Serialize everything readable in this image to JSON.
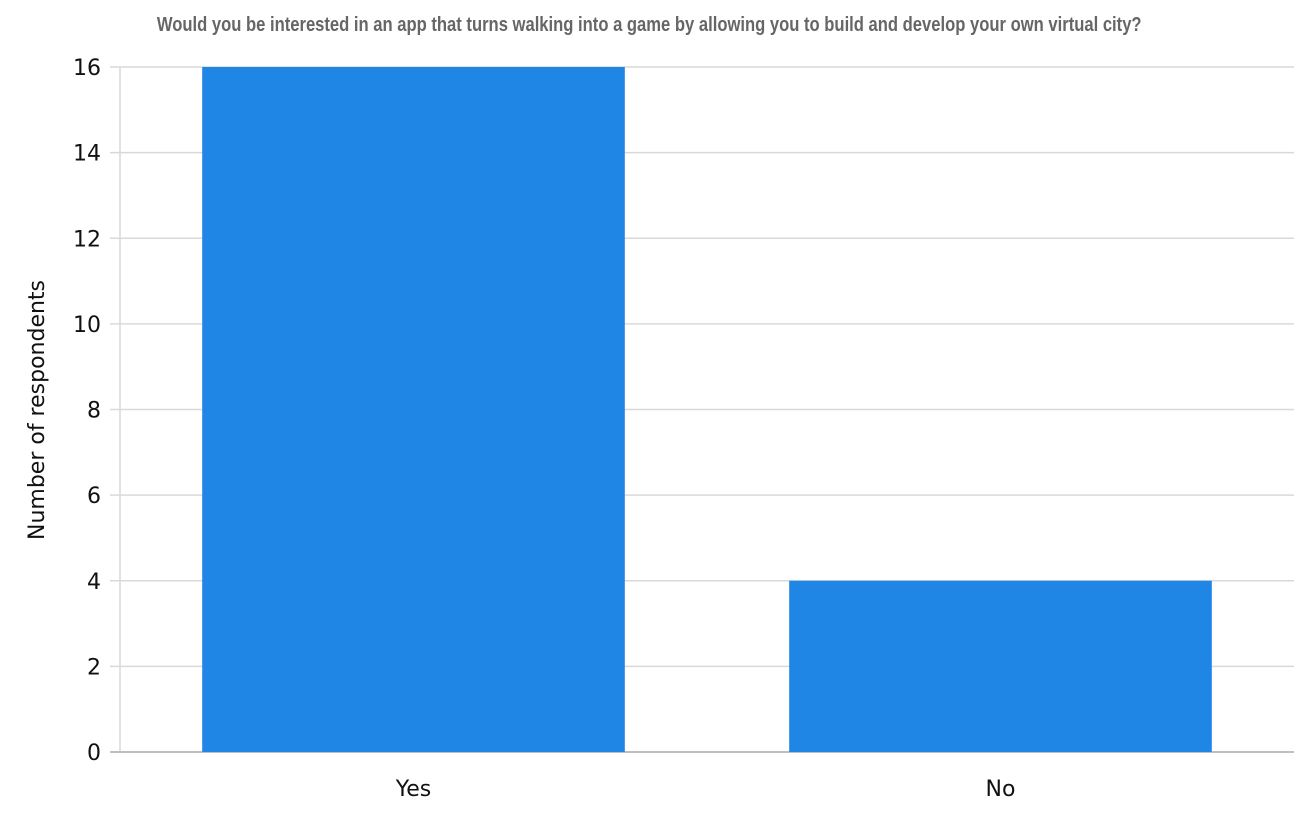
{
  "chart_data": {
    "type": "bar",
    "title": "Would you be interested in an app that turns walking into a game by allowing you to build and develop your own virtual city?",
    "xlabel": "",
    "ylabel": "Number of respondents",
    "categories": [
      "Yes",
      "No"
    ],
    "values": [
      16,
      4
    ],
    "ylim": [
      0,
      16
    ],
    "yticks": [
      0,
      2,
      4,
      6,
      8,
      10,
      12,
      14,
      16
    ],
    "grid": true,
    "legend": "none",
    "bar_color": "#2086E6",
    "grid_color": "#D9D9D9",
    "title_color": "#666666"
  }
}
